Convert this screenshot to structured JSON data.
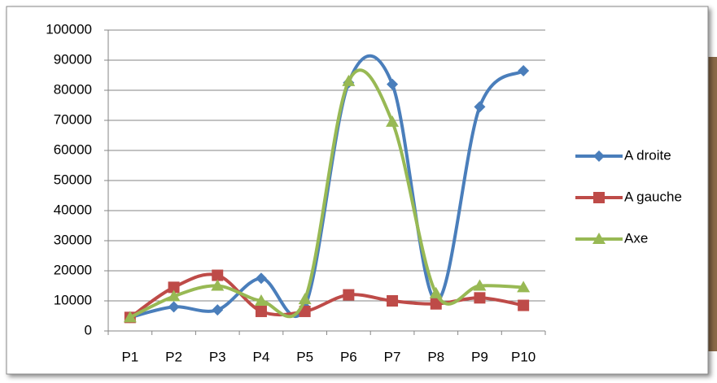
{
  "chart_data": {
    "type": "line",
    "categories": [
      "P1",
      "P2",
      "P3",
      "P4",
      "P5",
      "P6",
      "P7",
      "P8",
      "P9",
      "P10"
    ],
    "series": [
      {
        "name": "A droite",
        "color": "#4a7ebb",
        "marker": "diamond",
        "values": [
          4500,
          8000,
          7000,
          17500,
          8000,
          82500,
          82000,
          10000,
          74500,
          86500
        ]
      },
      {
        "name": "A gauche",
        "color": "#be4b48",
        "marker": "square",
        "values": [
          4500,
          14500,
          18500,
          6500,
          6500,
          12000,
          10000,
          9000,
          11000,
          8500
        ]
      },
      {
        "name": "Axe",
        "color": "#98b954",
        "marker": "triangle",
        "values": [
          4500,
          11500,
          15000,
          10000,
          10500,
          83000,
          69500,
          12500,
          15000,
          14500
        ]
      }
    ],
    "ylim": [
      0,
      100000
    ],
    "yticks": [
      0,
      10000,
      20000,
      30000,
      40000,
      50000,
      60000,
      70000,
      80000,
      90000,
      100000
    ],
    "grid": true,
    "smooth": true,
    "legend": "right"
  }
}
